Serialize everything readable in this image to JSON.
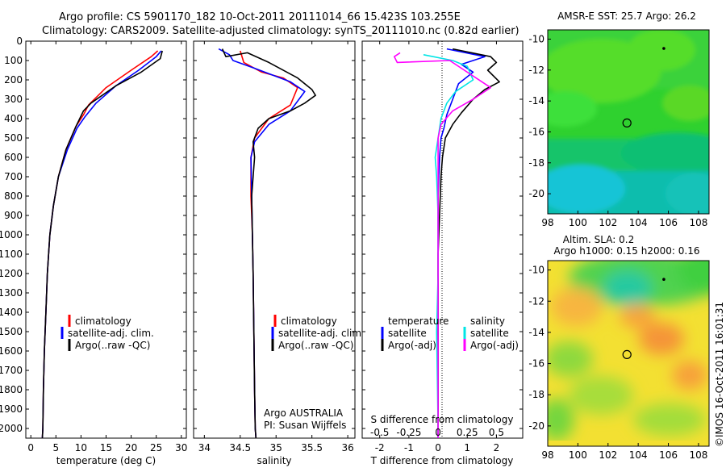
{
  "header": {
    "line1": "Argo profile: CS 5901170_182 10-Oct-2011 20111014_66 15.423S 103.255E",
    "line2": "Climatology: CARS2009. Satellite-adjusted climatology: synTS_20111010.nc (0.82d earlier)"
  },
  "credit": {
    "argo": "Argo AUSTRALIA",
    "pi": "PI: Susan Wijffels",
    "stamp": "©IMOS 16-Oct-2011 16:01:31"
  },
  "colors": {
    "red": "#ff0000",
    "blue": "#0000ff",
    "black": "#000000",
    "cyan": "#00e5e5",
    "magenta": "#ff00ff"
  },
  "chart_data": [
    {
      "type": "line",
      "xlabel": "temperature (deg C)",
      "ylabel": "",
      "xlim": [
        -1,
        31
      ],
      "ylim": [
        2050,
        0
      ],
      "xticks": [
        0,
        5,
        10,
        15,
        20,
        25,
        30
      ],
      "yticks": [
        0,
        100,
        200,
        300,
        400,
        500,
        600,
        700,
        800,
        900,
        1000,
        1100,
        1200,
        1300,
        1400,
        1500,
        1600,
        1700,
        1800,
        1900,
        2000
      ],
      "legend": [
        "climatology",
        "satellite-adj. clim.",
        "Argo(..raw -QC)"
      ],
      "series": [
        {
          "name": "climatology",
          "color": "red",
          "points": [
            [
              25.3,
              50
            ],
            [
              24,
              80
            ],
            [
              20,
              150
            ],
            [
              15,
              240
            ],
            [
              11.5,
              330
            ],
            [
              10.5,
              380
            ],
            [
              9,
              440
            ],
            [
              7,
              560
            ],
            [
              5.5,
              700
            ],
            [
              4.5,
              850
            ],
            [
              3.8,
              1000
            ],
            [
              3.3,
              1200
            ],
            [
              3,
              1400
            ],
            [
              2.7,
              1600
            ],
            [
              2.5,
              1800
            ],
            [
              2.4,
              2000
            ],
            [
              2.3,
              2050
            ]
          ]
        },
        {
          "name": "satellite-adj. clim.",
          "color": "blue",
          "points": [
            [
              26,
              50
            ],
            [
              25,
              80
            ],
            [
              21.5,
              150
            ],
            [
              17,
              230
            ],
            [
              13,
              320
            ],
            [
              10.8,
              390
            ],
            [
              9.2,
              450
            ],
            [
              7.3,
              560
            ],
            [
              5.5,
              700
            ],
            [
              4.5,
              850
            ],
            [
              3.8,
              1000
            ],
            [
              3.3,
              1200
            ],
            [
              3,
              1400
            ],
            [
              2.7,
              1600
            ],
            [
              2.5,
              1800
            ],
            [
              2.4,
              2000
            ],
            [
              2.3,
              2050
            ]
          ]
        },
        {
          "name": "Argo(..raw -QC)",
          "color": "black",
          "points": [
            [
              26.2,
              50
            ],
            [
              25.8,
              90
            ],
            [
              22,
              160
            ],
            [
              17,
              230
            ],
            [
              12,
              320
            ],
            [
              10.5,
              360
            ],
            [
              9,
              440
            ],
            [
              7,
              560
            ],
            [
              5.5,
              700
            ],
            [
              4.5,
              850
            ],
            [
              3.8,
              1000
            ],
            [
              3.3,
              1200
            ],
            [
              3,
              1400
            ],
            [
              2.7,
              1600
            ],
            [
              2.5,
              1800
            ],
            [
              2.4,
              2000
            ],
            [
              2.3,
              2050
            ]
          ]
        }
      ]
    },
    {
      "type": "line",
      "xlabel": "salinity",
      "ylabel": "",
      "xlim": [
        33.85,
        36.1
      ],
      "ylim": [
        2050,
        0
      ],
      "xticks": [
        34,
        34.5,
        35,
        35.5,
        36
      ],
      "legend": [
        "climatology",
        "satellite-adj. clim.",
        "Argo(..raw -QC)"
      ],
      "series": [
        {
          "name": "climatology",
          "color": "red",
          "points": [
            [
              34.5,
              50
            ],
            [
              34.55,
              110
            ],
            [
              34.8,
              160
            ],
            [
              35.1,
              190
            ],
            [
              35.3,
              240
            ],
            [
              35.2,
              330
            ],
            [
              34.9,
              400
            ],
            [
              34.7,
              500
            ],
            [
              34.65,
              600
            ],
            [
              34.65,
              800
            ],
            [
              34.67,
              1000
            ],
            [
              34.68,
              1200
            ],
            [
              34.69,
              1500
            ],
            [
              34.7,
              1800
            ],
            [
              34.71,
              2000
            ],
            [
              34.72,
              2050
            ]
          ]
        },
        {
          "name": "satellite-adj. clim.",
          "color": "blue",
          "points": [
            [
              34.2,
              40
            ],
            [
              34.35,
              70
            ],
            [
              34.4,
              100
            ],
            [
              34.7,
              140
            ],
            [
              35.2,
              210
            ],
            [
              35.4,
              260
            ],
            [
              35.2,
              360
            ],
            [
              34.9,
              430
            ],
            [
              34.7,
              520
            ],
            [
              34.65,
              600
            ],
            [
              34.66,
              800
            ],
            [
              34.67,
              1000
            ],
            [
              34.68,
              1200
            ],
            [
              34.69,
              1500
            ],
            [
              34.7,
              1800
            ],
            [
              34.71,
              2000
            ],
            [
              34.72,
              2050
            ]
          ]
        },
        {
          "name": "Argo(..raw -QC)",
          "color": "black",
          "points": [
            [
              34.25,
              40
            ],
            [
              34.3,
              80
            ],
            [
              34.6,
              60
            ],
            [
              34.9,
              110
            ],
            [
              35.3,
              190
            ],
            [
              35.5,
              250
            ],
            [
              35.55,
              280
            ],
            [
              35.4,
              320
            ],
            [
              35.2,
              360
            ],
            [
              34.9,
              400
            ],
            [
              34.75,
              450
            ],
            [
              34.68,
              520
            ],
            [
              34.7,
              600
            ],
            [
              34.66,
              800
            ],
            [
              34.67,
              1000
            ],
            [
              34.68,
              1200
            ],
            [
              34.69,
              1500
            ],
            [
              34.7,
              1800
            ],
            [
              34.71,
              2000
            ],
            [
              34.72,
              2050
            ]
          ]
        }
      ]
    },
    {
      "type": "line",
      "xlabel": "T difference from climatology",
      "x2label": "S difference from climatology",
      "ylabel": "",
      "xlim": [
        -2.6,
        2.9
      ],
      "ylim": [
        2050,
        0
      ],
      "xticks": [
        -2,
        -1,
        0,
        1,
        2
      ],
      "x2ticks": [
        "-0.5",
        "-0.25",
        "0",
        "0.25",
        "0.5"
      ],
      "legend_headers": [
        "temperature",
        "salinity"
      ],
      "legend": [
        "satellite",
        "Argo(-adj)",
        "satellite",
        "Argo(-adj)"
      ],
      "series": [
        {
          "name": "satellite",
          "group": "temperature",
          "color": "blue",
          "points": [
            [
              0.3,
              40
            ],
            [
              1.6,
              80
            ],
            [
              0.8,
              120
            ],
            [
              1.2,
              160
            ],
            [
              0.7,
              220
            ],
            [
              0.5,
              300
            ],
            [
              0.3,
              380
            ],
            [
              0.2,
              450
            ],
            [
              0.1,
              500
            ],
            [
              0.05,
              600
            ],
            [
              0,
              800
            ],
            [
              0,
              1000
            ],
            [
              0,
              1500
            ],
            [
              0,
              2000
            ],
            [
              0,
              2050
            ]
          ]
        },
        {
          "name": "Argo(-adj)",
          "group": "temperature",
          "color": "black",
          "points": [
            [
              0.5,
              40
            ],
            [
              1.8,
              80
            ],
            [
              2,
              110
            ],
            [
              1.7,
              150
            ],
            [
              2.1,
              210
            ],
            [
              1.6,
              250
            ],
            [
              1.2,
              300
            ],
            [
              0.8,
              370
            ],
            [
              0.5,
              430
            ],
            [
              0.25,
              500
            ],
            [
              0.15,
              600
            ],
            [
              0.1,
              700
            ],
            [
              0.05,
              900
            ],
            [
              0,
              1100
            ],
            [
              0,
              1500
            ],
            [
              0,
              2000
            ],
            [
              0,
              2050
            ]
          ]
        },
        {
          "name": "satellite",
          "group": "salinity",
          "color": "cyan",
          "points": [
            [
              -0.5,
              70
            ],
            [
              0.5,
              100
            ],
            [
              1,
              130
            ],
            [
              1.2,
              200
            ],
            [
              0.6,
              260
            ],
            [
              0.3,
              320
            ],
            [
              0.1,
              400
            ],
            [
              0,
              500
            ],
            [
              -0.1,
              600
            ],
            [
              -0.05,
              700
            ],
            [
              0,
              900
            ],
            [
              0,
              1200
            ],
            [
              -0.05,
              1500
            ],
            [
              0,
              2000
            ],
            [
              0,
              2050
            ]
          ]
        },
        {
          "name": "Argo(-adj)",
          "group": "salinity",
          "color": "magenta",
          "points": [
            [
              -1.3,
              60
            ],
            [
              -1.5,
              80
            ],
            [
              -1.4,
              110
            ],
            [
              0.4,
              100
            ],
            [
              1.8,
              240
            ],
            [
              1.2,
              300
            ],
            [
              0.5,
              360
            ],
            [
              0.1,
              430
            ],
            [
              0,
              500
            ],
            [
              0,
              700
            ],
            [
              0,
              1000
            ],
            [
              0,
              2050
            ]
          ]
        }
      ]
    },
    {
      "type": "heatmap",
      "title": "AMSR-E SST: 25.7 Argo: 26.2",
      "xlim": [
        98,
        108.7
      ],
      "ylim": [
        -21.3,
        -9.4
      ],
      "xticks": [
        98,
        100,
        102,
        104,
        106,
        108
      ],
      "yticks": [
        -10,
        -12,
        -14,
        -16,
        -18,
        -20
      ],
      "marker": {
        "x": 103.255,
        "y": -15.423
      },
      "point": {
        "x": 105.7,
        "y": -10.6
      }
    },
    {
      "type": "heatmap",
      "title_lines": [
        "Altim. SLA: 0.2",
        "Argo h1000: 0.15 h2000: 0.16"
      ],
      "xlim": [
        98,
        108.7
      ],
      "ylim": [
        -21.3,
        -9.4
      ],
      "xticks": [
        98,
        100,
        102,
        104,
        106,
        108
      ],
      "yticks": [
        -10,
        -12,
        -14,
        -16,
        -18,
        -20
      ],
      "marker": {
        "x": 103.255,
        "y": -15.423
      },
      "point": {
        "x": 105.7,
        "y": -10.6
      }
    }
  ]
}
